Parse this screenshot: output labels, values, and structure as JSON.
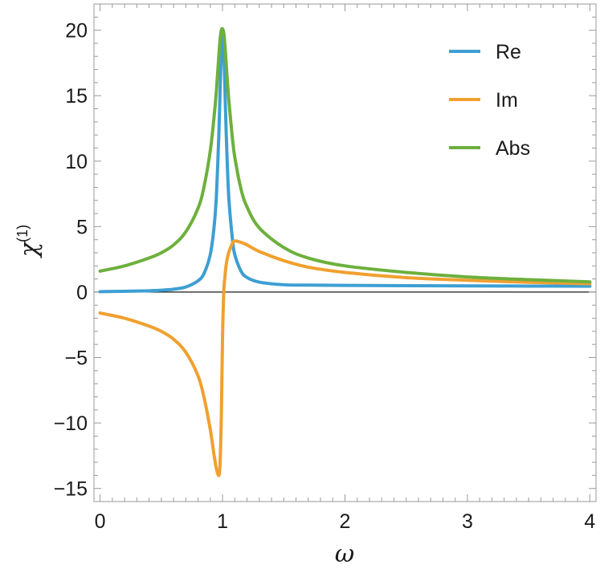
{
  "chart_data": {
    "type": "line",
    "title": "",
    "xlabel": "ω",
    "ylabel": "χ",
    "ylabel_superscript": "(1)",
    "xlim": [
      -0.05,
      4.05
    ],
    "ylim": [
      -16,
      22
    ],
    "xticks": [
      0,
      1,
      2,
      3,
      4
    ],
    "xtick_labels": [
      "0",
      "1",
      "2",
      "3",
      "4"
    ],
    "yticks": [
      -15,
      -10,
      -5,
      0,
      5,
      10,
      15,
      20
    ],
    "ytick_labels": [
      "−15",
      "−10",
      "−5",
      "0",
      "5",
      "10",
      "15",
      "20"
    ],
    "grid": false,
    "legend_position": "top-right",
    "zero_line": true,
    "series": [
      {
        "name": "Re",
        "color": "#3d9fd3",
        "x": [
          0,
          0.2,
          0.4,
          0.5,
          0.6,
          0.7,
          0.8,
          0.85,
          0.9,
          0.93,
          0.95,
          0.97,
          0.98,
          0.99,
          1.0,
          1.01,
          1.02,
          1.03,
          1.05,
          1.08,
          1.1,
          1.15,
          1.2,
          1.3,
          1.5,
          1.7,
          2.0,
          2.5,
          3.0,
          3.5,
          4.0
        ],
        "values": [
          0.03,
          0.06,
          0.1,
          0.14,
          0.22,
          0.39,
          0.86,
          1.45,
          2.87,
          4.9,
          7.39,
          12.1,
          15.35,
          18.6,
          20.0,
          18.6,
          15.35,
          12.15,
          7.39,
          4.1,
          2.87,
          1.62,
          1.11,
          0.76,
          0.56,
          0.53,
          0.51,
          0.49,
          0.47,
          0.46,
          0.45
        ]
      },
      {
        "name": "Im",
        "color": "#f0a030",
        "x": [
          0,
          0.2,
          0.4,
          0.5,
          0.6,
          0.7,
          0.8,
          0.85,
          0.9,
          0.93,
          0.95,
          0.97,
          0.98,
          0.99,
          1.0,
          1.01,
          1.02,
          1.03,
          1.05,
          1.08,
          1.1,
          1.15,
          1.2,
          1.3,
          1.5,
          1.7,
          2.0,
          2.5,
          3.0,
          3.5,
          4.0
        ],
        "values": [
          -1.6,
          -2.0,
          -2.6,
          -3.0,
          -3.6,
          -4.6,
          -6.4,
          -8.1,
          -10.5,
          -12.4,
          -13.5,
          -14.0,
          -13.0,
          -9.5,
          -3.5,
          0.0,
          1.2,
          2.1,
          3.0,
          3.7,
          3.9,
          3.8,
          3.6,
          3.1,
          2.4,
          1.9,
          1.5,
          1.1,
          0.9,
          0.75,
          0.64
        ]
      },
      {
        "name": "Abs",
        "color": "#6db03d",
        "x": [
          0,
          0.2,
          0.4,
          0.5,
          0.6,
          0.7,
          0.8,
          0.85,
          0.9,
          0.93,
          0.95,
          0.97,
          0.98,
          0.99,
          1.0,
          1.01,
          1.02,
          1.03,
          1.05,
          1.08,
          1.1,
          1.15,
          1.2,
          1.3,
          1.5,
          1.7,
          2.0,
          2.5,
          3.0,
          3.5,
          4.0
        ],
        "values": [
          1.6,
          2.0,
          2.6,
          3.0,
          3.6,
          4.6,
          6.4,
          8.1,
          10.8,
          13.3,
          15.4,
          18.1,
          19.3,
          20.0,
          20.1,
          19.8,
          18.8,
          17.4,
          14.8,
          11.8,
          10.3,
          7.9,
          6.5,
          4.9,
          3.4,
          2.6,
          2.0,
          1.5,
          1.15,
          0.95,
          0.78
        ]
      }
    ]
  }
}
